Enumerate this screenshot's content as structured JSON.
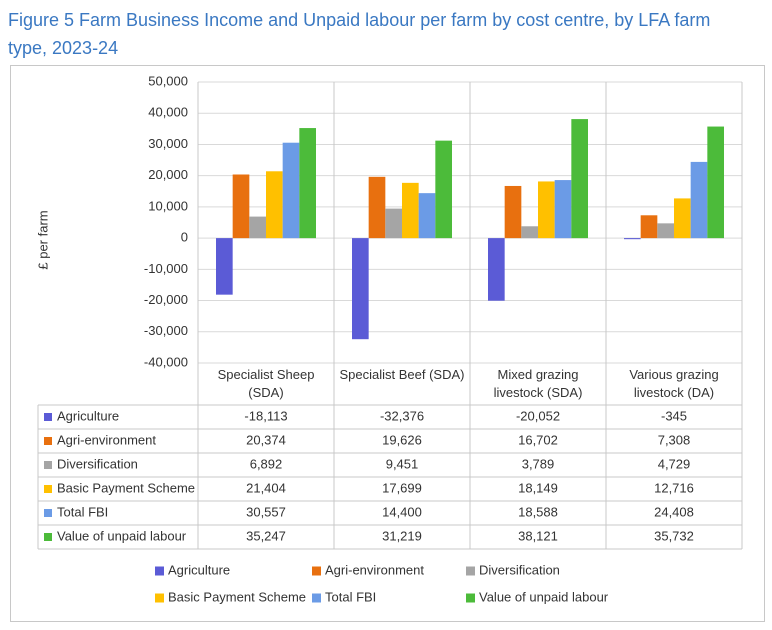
{
  "chart_data": {
    "type": "bar",
    "title": "Figure 5 Farm Business Income and Unpaid labour per farm by cost centre, by LFA farm type, 2023-24",
    "y_label": "£ per farm",
    "categories": [
      "Specialist Sheep (SDA)",
      "Specialist Beef (SDA)",
      "Mixed grazing livestock (SDA)",
      "Various grazing livestock (DA)"
    ],
    "series": [
      {
        "name": "Agriculture",
        "color": "#5b5bd6",
        "values": [
          -18113,
          -32376,
          -20052,
          -345
        ],
        "value_labels": [
          "-18,113",
          "-32,376",
          "-20,052",
          "-345"
        ]
      },
      {
        "name": "Agri-environment",
        "color": "#e8700f",
        "values": [
          20374,
          19626,
          16702,
          7308
        ],
        "value_labels": [
          "20,374",
          "19,626",
          "16,702",
          "7,308"
        ]
      },
      {
        "name": "Diversification",
        "color": "#a5a5a5",
        "values": [
          6892,
          9451,
          3789,
          4729
        ],
        "value_labels": [
          "6,892",
          "9,451",
          "3,789",
          "4,729"
        ]
      },
      {
        "name": "Basic Payment Scheme",
        "color": "#ffc000",
        "values": [
          21404,
          17699,
          18149,
          12716
        ],
        "value_labels": [
          "21,404",
          "17,699",
          "18,149",
          "12,716"
        ]
      },
      {
        "name": "Total FBI",
        "color": "#6b9be6",
        "values": [
          30557,
          14400,
          18588,
          24408
        ],
        "value_labels": [
          "30,557",
          "14,400",
          "18,588",
          "24,408"
        ]
      },
      {
        "name": "Value of unpaid labour",
        "color": "#4cbb3a",
        "values": [
          35247,
          31219,
          38121,
          35732
        ],
        "value_labels": [
          "35,247",
          "31,219",
          "38,121",
          "35,732"
        ]
      }
    ],
    "ylim": [
      -40000,
      50000
    ],
    "yticks": [
      {
        "value": -40000,
        "label": "-40,000"
      },
      {
        "value": -30000,
        "label": "-30,000"
      },
      {
        "value": -20000,
        "label": "-20,000"
      },
      {
        "value": -10000,
        "label": "-10,000"
      },
      0,
      {
        "value": 10000,
        "label": "10,000"
      },
      {
        "value": 20000,
        "label": "20,000"
      },
      {
        "value": 30000,
        "label": "30,000"
      },
      {
        "value": 40000,
        "label": "40,000"
      },
      {
        "value": 50000,
        "label": "50,000"
      }
    ],
    "grid": true
  }
}
